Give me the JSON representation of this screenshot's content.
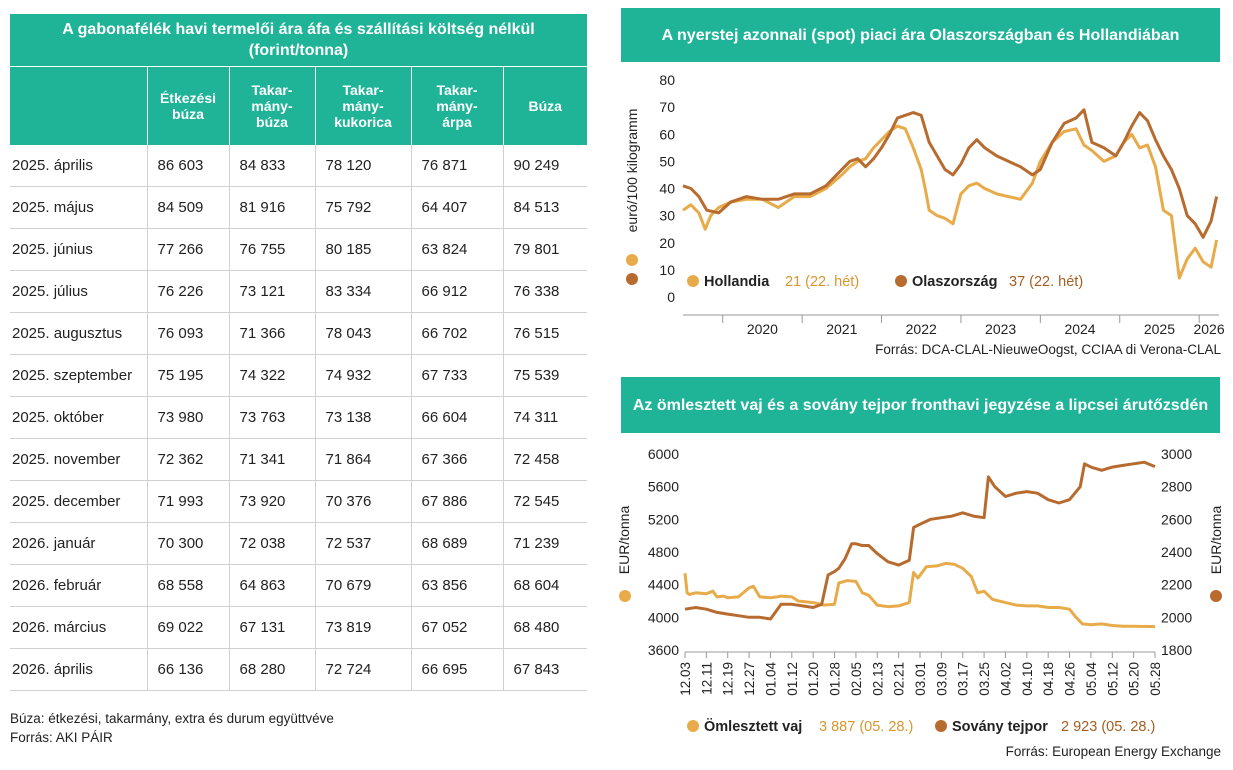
{
  "table": {
    "title": "A gabonafélék havi termelői ára áfa és szállítási költség nélkül (forint/tonna)",
    "headers": [
      "",
      "Étkezési búza",
      "Takar-mány-búza",
      "Takar-mány-kukorica",
      "Takar-mány-árpa",
      "Búza"
    ],
    "rows": [
      [
        "2025. április",
        "86 603",
        "84 833",
        "78 120",
        "76 871",
        "90 249"
      ],
      [
        "2025. május",
        "84 509",
        "81 916",
        "75 792",
        "64 407",
        "84 513"
      ],
      [
        "2025. június",
        "77 266",
        "76 755",
        "80 185",
        "63 824",
        "79 801"
      ],
      [
        "2025. július",
        "76 226",
        "73 121",
        "83 334",
        "66 912",
        "76 338"
      ],
      [
        "2025. augusztus",
        "76 093",
        "71 366",
        "78 043",
        "66 702",
        "76 515"
      ],
      [
        "2025. szeptember",
        "75 195",
        "74 322",
        "74 932",
        "67 733",
        "75 539"
      ],
      [
        "2025. október",
        "73 980",
        "73 763",
        "73 138",
        "66 604",
        "74 311"
      ],
      [
        "2025. november",
        "72 362",
        "71 341",
        "71 864",
        "67 366",
        "72 458"
      ],
      [
        "2025. december",
        "71 993",
        "73 920",
        "70 376",
        "67 886",
        "72 545"
      ],
      [
        "2026. január",
        "70 300",
        "72 038",
        "72 537",
        "68 689",
        "71 239"
      ],
      [
        "2026. február",
        "68 558",
        "64 863",
        "70 679",
        "63 856",
        "68 604"
      ],
      [
        "2026. március",
        "69 022",
        "67 131",
        "73 819",
        "67 052",
        "68 480"
      ],
      [
        "2026. április",
        "66 136",
        "68 280",
        "72 724",
        "66 695",
        "67 843"
      ]
    ],
    "note": "Búza: étkezési, takarmány, extra és durum együttvéve",
    "source": "Forrás: AKI PÁIR"
  },
  "chart_data": [
    {
      "type": "line",
      "title": "A nyerstej azonnali (spot) piaci ára Olaszországban és Hollandiában",
      "ylabel": "euró/100 kilogramm",
      "ylim": [
        0,
        80
      ],
      "yticks": [
        0,
        10,
        20,
        30,
        40,
        50,
        60,
        70,
        80
      ],
      "xticks": [
        "2020",
        "2021",
        "2022",
        "2023",
        "2024",
        "2025",
        "2026"
      ],
      "xlim": [
        2019.5,
        2026.25
      ],
      "legend": [
        {
          "name": "Hollandia",
          "value": "21 (22. hét)"
        },
        {
          "name": "Olaszország",
          "value": "37 (22. hét)"
        }
      ],
      "series": [
        {
          "name": "Hollandia",
          "color": "#e8ab4a",
          "x": [
            2019.5,
            2019.6,
            2019.7,
            2019.78,
            2019.85,
            2019.95,
            2020.1,
            2020.3,
            2020.5,
            2020.7,
            2020.9,
            2021.1,
            2021.3,
            2021.5,
            2021.6,
            2021.7,
            2021.8,
            2021.9,
            2022.0,
            2022.1,
            2022.2,
            2022.3,
            2022.4,
            2022.5,
            2022.55,
            2022.6,
            2022.7,
            2022.8,
            2022.9,
            2023.0,
            2023.1,
            2023.2,
            2023.3,
            2023.45,
            2023.6,
            2023.75,
            2023.9,
            2024.0,
            2024.15,
            2024.3,
            2024.45,
            2024.55,
            2024.65,
            2024.8,
            2024.95,
            2025.05,
            2025.15,
            2025.25,
            2025.35,
            2025.45,
            2025.55,
            2025.65,
            2025.75,
            2025.85,
            2025.95,
            2026.05,
            2026.15,
            2026.22
          ],
          "y": [
            32,
            34,
            31,
            25,
            30,
            33,
            35,
            36,
            36,
            33,
            37,
            37,
            40,
            45,
            48,
            50,
            51,
            55,
            58,
            61,
            63,
            62,
            55,
            47,
            40,
            32,
            30,
            29,
            27,
            38,
            41,
            42,
            40,
            38,
            37,
            36,
            42,
            50,
            57,
            61,
            62,
            56,
            54,
            50,
            52,
            57,
            60,
            55,
            56,
            48,
            32,
            30,
            7,
            14,
            18,
            13,
            11,
            21
          ]
        },
        {
          "name": "Olaszország",
          "color": "#b86b2e",
          "x": [
            2019.5,
            2019.6,
            2019.7,
            2019.8,
            2019.95,
            2020.1,
            2020.3,
            2020.5,
            2020.7,
            2020.9,
            2021.1,
            2021.3,
            2021.5,
            2021.6,
            2021.7,
            2021.8,
            2021.9,
            2022.0,
            2022.1,
            2022.2,
            2022.3,
            2022.4,
            2022.5,
            2022.55,
            2022.6,
            2022.7,
            2022.8,
            2022.9,
            2023.0,
            2023.1,
            2023.2,
            2023.3,
            2023.45,
            2023.6,
            2023.75,
            2023.9,
            2024.0,
            2024.15,
            2024.3,
            2024.45,
            2024.55,
            2024.65,
            2024.8,
            2024.95,
            2025.05,
            2025.15,
            2025.25,
            2025.35,
            2025.45,
            2025.55,
            2025.65,
            2025.75,
            2025.85,
            2025.95,
            2026.05,
            2026.15,
            2026.22
          ],
          "y": [
            41,
            40,
            37,
            32,
            31,
            35,
            37,
            36,
            36,
            38,
            38,
            41,
            47,
            50,
            51,
            48,
            51,
            55,
            60,
            66,
            67,
            68,
            67,
            62,
            57,
            52,
            47,
            45,
            49,
            55,
            58,
            55,
            52,
            50,
            48,
            45,
            47,
            57,
            64,
            66,
            69,
            57,
            55,
            52,
            57,
            63,
            68,
            65,
            58,
            52,
            47,
            40,
            30,
            27,
            22,
            28,
            37
          ]
        }
      ],
      "source": "Forrás: DCA-CLAL-NieuweOogst, CCIAA di Verona-CLAL"
    },
    {
      "type": "line",
      "title": "Az ömlesztett vaj és a sovány tejpor fronthavi jegyzése a lipcsei árutőzsdén",
      "ylabel_left": "EUR/tonna",
      "ylabel_right": "EUR/tonna",
      "ylim_left": [
        3600,
        6000
      ],
      "ylim_right": [
        1800,
        3000
      ],
      "yticks_left": [
        3600,
        4000,
        4400,
        4800,
        5200,
        5600,
        6000
      ],
      "yticks_right": [
        1800,
        2000,
        2200,
        2400,
        2600,
        2800,
        3000
      ],
      "categories": [
        "12.03",
        "12.11",
        "12.19",
        "12.27",
        "01.04",
        "01.12",
        "01.20",
        "01.28",
        "02.05",
        "02.13",
        "02.21",
        "03.01",
        "03.09",
        "03.17",
        "03.25",
        "04.02",
        "04.10",
        "04.18",
        "04.26",
        "05.04",
        "05.12",
        "05.20",
        "05.28"
      ],
      "legend": [
        {
          "name": "Ömlesztett vaj",
          "value": "3 887 (05. 28.)"
        },
        {
          "name": "Sovány tejpor",
          "value": "2 923 (05. 28.)"
        }
      ],
      "series": [
        {
          "name": "Ömlesztett vaj",
          "axis": "left",
          "color": "#e8ab4a",
          "x": [
            0,
            0.1,
            0.2,
            0.5,
            1.0,
            1.3,
            1.5,
            1.8,
            2.0,
            2.5,
            3.0,
            3.2,
            3.5,
            4.0,
            4.3,
            4.5,
            5.0,
            5.3,
            6.0,
            6.5,
            7.0,
            7.2,
            7.6,
            8.0,
            8.3,
            8.6,
            9.0,
            9.5,
            10.0,
            10.5,
            10.7,
            10.9,
            11.3,
            11.8,
            12.2,
            12.6,
            13.0,
            13.4,
            13.7,
            14.0,
            14.4,
            15.0,
            15.5,
            16.0,
            16.5,
            17.0,
            17.5,
            18.0,
            18.3,
            18.6,
            19.0,
            19.5,
            20.0,
            20.5,
            21.0,
            22.0
          ],
          "y": [
            4540,
            4300,
            4280,
            4300,
            4290,
            4320,
            4250,
            4260,
            4240,
            4250,
            4360,
            4380,
            4250,
            4240,
            4250,
            4260,
            4250,
            4200,
            4180,
            4150,
            4160,
            4420,
            4450,
            4440,
            4300,
            4270,
            4150,
            4130,
            4140,
            4180,
            4550,
            4480,
            4620,
            4630,
            4660,
            4650,
            4600,
            4500,
            4300,
            4320,
            4220,
            4180,
            4150,
            4140,
            4140,
            4120,
            4120,
            4100,
            4000,
            3920,
            3910,
            3920,
            3900,
            3890,
            3890,
            3887
          ]
        },
        {
          "name": "Sovány tejpor",
          "axis": "right",
          "color": "#b86b2e",
          "x": [
            0,
            0.5,
            1.0,
            1.5,
            2.0,
            2.5,
            3.0,
            3.5,
            4.0,
            4.5,
            5.0,
            5.5,
            6.0,
            6.4,
            6.7,
            7.0,
            7.2,
            7.5,
            7.8,
            8.0,
            8.3,
            8.6,
            9.0,
            9.5,
            10.0,
            10.5,
            10.7,
            11.0,
            11.5,
            12.0,
            12.5,
            13.0,
            13.5,
            14.0,
            14.2,
            14.5,
            15.0,
            15.5,
            16.0,
            16.5,
            17.0,
            17.5,
            18.0,
            18.5,
            18.7,
            19.0,
            19.5,
            20.0,
            20.5,
            21.0,
            21.5,
            22.0
          ],
          "y": [
            2050,
            2060,
            2050,
            2030,
            2020,
            2010,
            2000,
            2000,
            1990,
            2080,
            2080,
            2070,
            2060,
            2080,
            2260,
            2280,
            2300,
            2360,
            2450,
            2450,
            2440,
            2440,
            2390,
            2340,
            2320,
            2350,
            2550,
            2570,
            2600,
            2610,
            2620,
            2640,
            2620,
            2610,
            2860,
            2800,
            2740,
            2760,
            2770,
            2760,
            2720,
            2700,
            2720,
            2800,
            2940,
            2920,
            2900,
            2920,
            2930,
            2940,
            2950,
            2923
          ]
        }
      ],
      "source": "Forrás: European Energy Exchange"
    }
  ]
}
